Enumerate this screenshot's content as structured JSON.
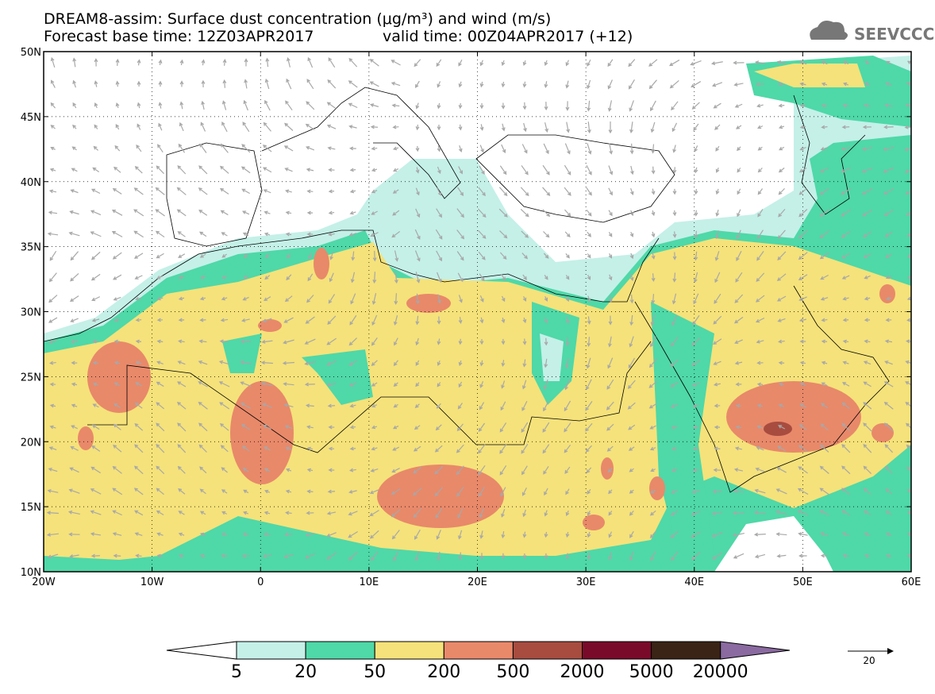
{
  "header": {
    "title": "DREAM8-assim: Surface dust concentration (μg/m³) and wind (m/s)",
    "base_time": "Forecast base time: 12Z03APR2017",
    "valid_time": "valid time: 00Z04APR2017 (+12)",
    "logo": "SEEVCCC"
  },
  "map": {
    "lon_labels": [
      "20W",
      "10W",
      "0",
      "10E",
      "20E",
      "30E",
      "40E",
      "50E",
      "60E"
    ],
    "lat_labels": [
      "50N",
      "45N",
      "40N",
      "35N",
      "30N",
      "25N",
      "20N",
      "15N",
      "10N"
    ]
  },
  "colorbar": {
    "labels": [
      5,
      20,
      50,
      200,
      500,
      2000,
      5000,
      20000
    ],
    "colors": [
      "#ffffff",
      "#c4f0e8",
      "#4fd8a8",
      "#f5e27a",
      "#e8896a",
      "#a84c40",
      "#7a0a2a",
      "#3a2416",
      "#8a6aa0"
    ]
  },
  "wind_scale": {
    "label": 20
  }
}
